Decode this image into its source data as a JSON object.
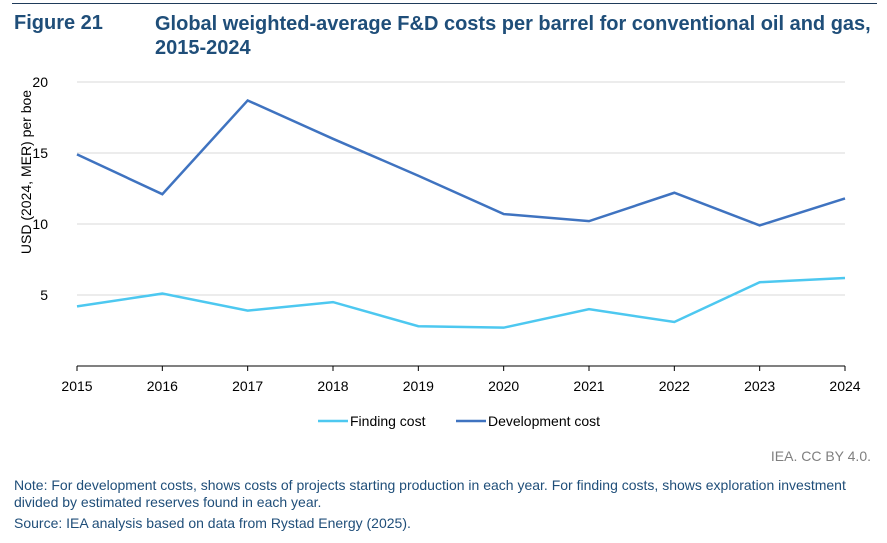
{
  "figure_label": "Figure 21",
  "title": "Global weighted-average F&D costs per barrel for conventional oil and gas, 2015-2024",
  "credit": "IEA. CC BY 4.0.",
  "note": "Note: For development costs, shows costs of projects starting production in each year. For finding costs, shows exploration investment divided by estimated reserves found in each year.",
  "source": "Source: IEA analysis based on data from Rystad Energy (2025).",
  "chart_data": {
    "type": "line",
    "ylabel": "USD (2024, MER) per boe",
    "xlabel": "",
    "ylim": [
      0,
      20
    ],
    "yticks": [
      5,
      10,
      15,
      20
    ],
    "grid": true,
    "legend_placement": "bottom",
    "x": [
      "2015",
      "2016",
      "2017",
      "2018",
      "2019",
      "2020",
      "2021",
      "2022",
      "2023",
      "2024"
    ],
    "series": [
      {
        "name": "Finding cost",
        "color": "#4dc8f0",
        "values": [
          4.2,
          5.1,
          3.9,
          4.5,
          2.8,
          2.7,
          4.0,
          3.1,
          5.9,
          6.2
        ]
      },
      {
        "name": "Development cost",
        "color": "#3f73c0",
        "values": [
          14.9,
          12.1,
          18.7,
          16.0,
          13.4,
          10.7,
          10.2,
          12.2,
          9.9,
          11.8
        ]
      }
    ]
  }
}
